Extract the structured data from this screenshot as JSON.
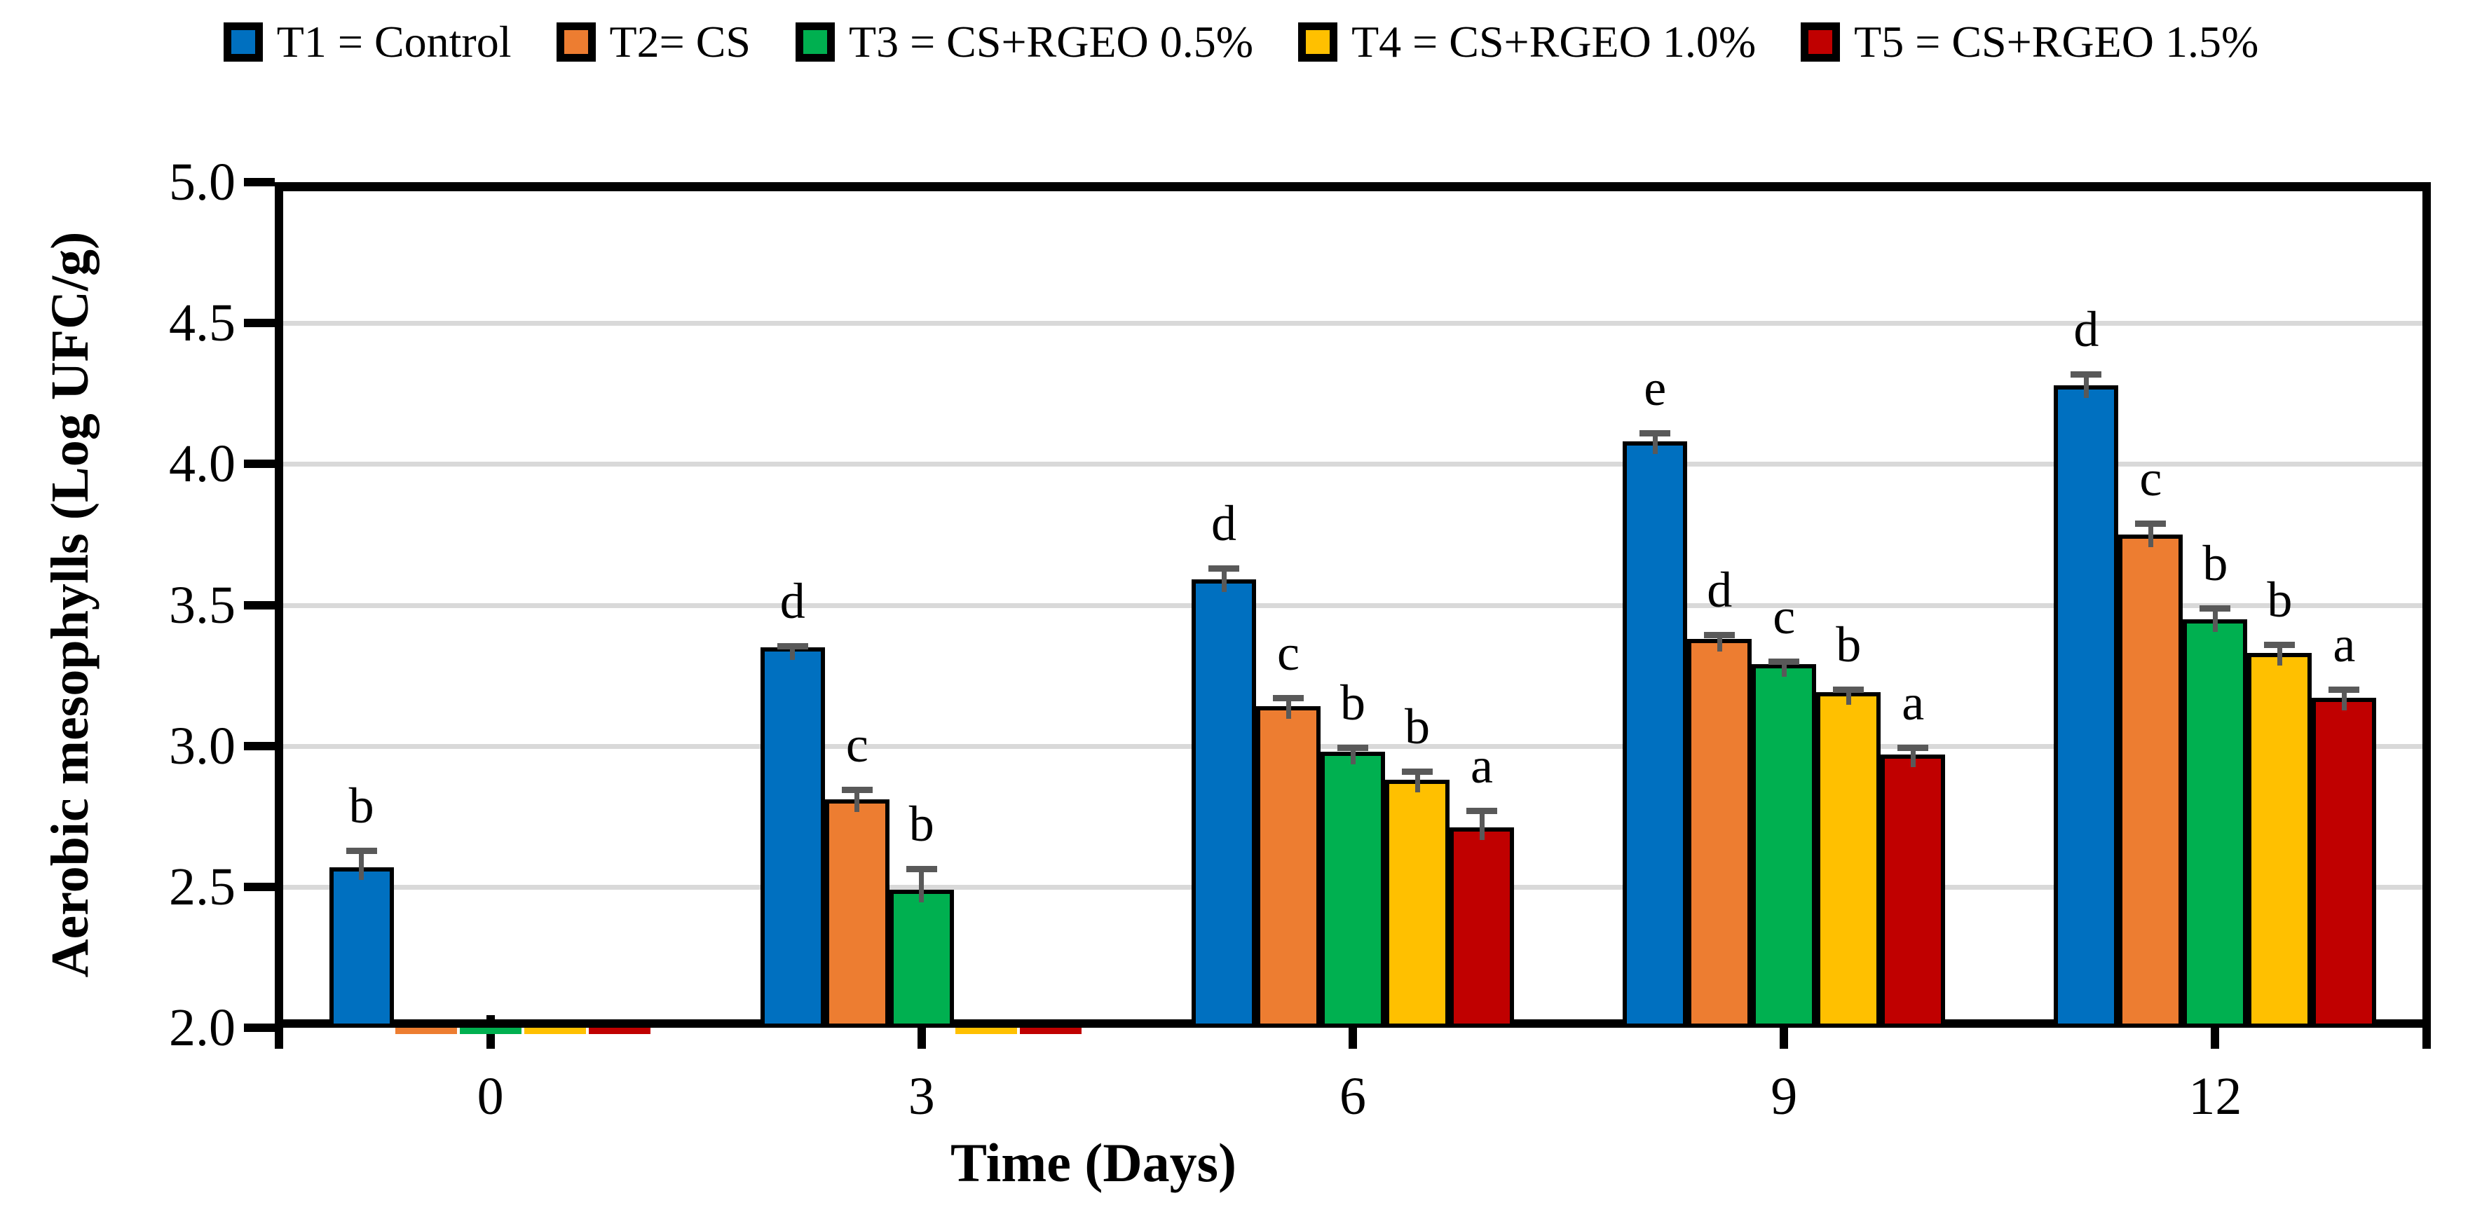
{
  "figure": {
    "background": "#FFFFFF"
  },
  "legend": {
    "position": "top",
    "items": [
      {
        "label": "T1 = Control",
        "color": "#0070C0"
      },
      {
        "label": "T2= CS",
        "color": "#ED7D31"
      },
      {
        "label": "T3 = CS+RGEO 0.5%",
        "color": "#00B050"
      },
      {
        "label": "T4 = CS+RGEO 1.0%",
        "color": "#FFC000"
      },
      {
        "label": "T5 = CS+RGEO 1.5%",
        "color": "#C00000"
      }
    ]
  },
  "chart_data": {
    "type": "bar",
    "title": "",
    "xlabel": "Time (Days)",
    "ylabel": "Aerobic mesophylls (Log UFC/g)",
    "ylim": [
      2.0,
      5.0
    ],
    "ytick_step": 0.5,
    "ytick_labels": [
      "2.0",
      "2.5",
      "3.0",
      "3.5",
      "4.0",
      "4.5",
      "5.0"
    ],
    "categories": [
      "0",
      "3",
      "6",
      "9",
      "12"
    ],
    "grid": true,
    "gridlines_at": [
      2.5,
      3.0,
      3.5,
      4.0,
      4.5
    ],
    "legend_position": "top",
    "series": [
      {
        "name": "T1 = Control",
        "color": "#0070C0",
        "values": [
          2.57,
          3.35,
          3.59,
          4.08,
          4.28
        ],
        "errors": [
          0.07,
          0.015,
          0.05,
          0.04,
          0.05
        ],
        "letters": [
          "b",
          "d",
          "d",
          "e",
          "d"
        ]
      },
      {
        "name": "T2= CS",
        "color": "#ED7D31",
        "values": [
          2.0,
          2.81,
          3.14,
          3.38,
          3.75
        ],
        "errors": [
          0,
          0.045,
          0.04,
          0.025,
          0.05
        ],
        "letters": [
          "",
          "c",
          "c",
          "d",
          "c"
        ]
      },
      {
        "name": "T3 = CS+RGEO 0.5%",
        "color": "#00B050",
        "values": [
          2.0,
          2.49,
          2.98,
          3.29,
          3.45
        ],
        "errors": [
          0,
          0.085,
          0.025,
          0.02,
          0.05
        ],
        "letters": [
          "",
          "b",
          "b",
          "c",
          "b"
        ]
      },
      {
        "name": "T4 = CS+RGEO 1.0%",
        "color": "#FFC000",
        "values": [
          2.0,
          2.0,
          2.88,
          3.19,
          3.33
        ],
        "errors": [
          0,
          0,
          0.04,
          0.02,
          0.04
        ],
        "letters": [
          "",
          "",
          "b",
          "b",
          "b"
        ]
      },
      {
        "name": "T5 = CS+RGEO 1.5%",
        "color": "#C00000",
        "values": [
          2.0,
          2.0,
          2.71,
          2.97,
          3.17
        ],
        "errors": [
          0,
          0,
          0.07,
          0.035,
          0.04
        ],
        "letters": [
          "",
          "",
          "a",
          "a",
          "a"
        ]
      }
    ]
  },
  "colors": {
    "grid": "#D9D9D9",
    "axis": "#000000",
    "error_bar": "#595959",
    "text": "#000000"
  }
}
